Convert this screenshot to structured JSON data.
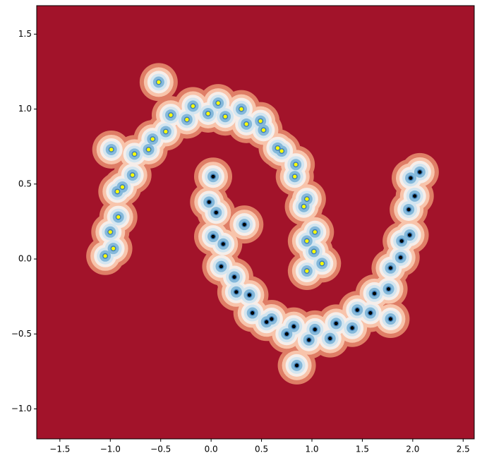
{
  "chart_data": {
    "type": "scatter",
    "background_color": "#a2132a",
    "contour_colors": [
      "#df7e66",
      "#f8c4ab",
      "#f6eeea",
      "#d3e5f0",
      "#84b8da",
      "#3b7db8"
    ],
    "xlim": [
      -1.73,
      2.61
    ],
    "ylim": [
      -1.2,
      1.69
    ],
    "xticks": [
      -1.5,
      -1.0,
      -0.5,
      0.0,
      0.5,
      1.0,
      1.5,
      2.0,
      2.5
    ],
    "yticks": [
      -1.0,
      -0.5,
      0.0,
      0.5,
      1.0,
      1.5
    ],
    "series": [
      {
        "color": "#ffff00",
        "x": [
          1.02,
          0.95,
          1.03,
          0.92,
          0.95,
          0.83,
          0.84,
          0.7,
          0.66,
          0.52,
          0.49,
          0.35,
          0.3,
          0.14,
          0.07,
          -0.03,
          -0.18,
          -0.24,
          -0.4,
          -0.45,
          -0.58,
          -0.62,
          -0.76,
          -0.78,
          -0.88,
          -0.93,
          -0.92,
          -1.0,
          -0.97,
          -1.05,
          -0.52,
          -0.99,
          1.1,
          0.95
        ],
        "y": [
          0.05,
          0.12,
          0.18,
          0.35,
          0.4,
          0.55,
          0.63,
          0.72,
          0.74,
          0.86,
          0.92,
          0.9,
          1.0,
          0.95,
          1.04,
          0.97,
          1.02,
          0.93,
          0.96,
          0.85,
          0.8,
          0.73,
          0.7,
          0.56,
          0.48,
          0.45,
          0.28,
          0.18,
          0.07,
          0.02,
          1.18,
          0.73,
          -0.03,
          -0.08
        ]
      },
      {
        "color": "#000000",
        "x": [
          0.02,
          -0.02,
          0.05,
          0.02,
          0.12,
          0.1,
          0.23,
          0.25,
          0.38,
          0.41,
          0.55,
          0.6,
          0.75,
          0.82,
          0.97,
          1.03,
          1.18,
          1.24,
          1.4,
          1.45,
          1.58,
          1.62,
          1.76,
          1.78,
          1.88,
          1.89,
          1.97,
          1.96,
          2.02,
          1.98,
          2.07,
          0.33,
          0.85,
          1.78
        ],
        "y": [
          0.55,
          0.38,
          0.31,
          0.15,
          0.1,
          -0.05,
          -0.12,
          -0.22,
          -0.24,
          -0.36,
          -0.42,
          -0.4,
          -0.5,
          -0.45,
          -0.54,
          -0.47,
          -0.53,
          -0.43,
          -0.46,
          -0.34,
          -0.36,
          -0.23,
          -0.2,
          -0.06,
          0.01,
          0.12,
          0.16,
          0.33,
          0.42,
          0.54,
          0.58,
          0.23,
          -0.71,
          -0.4
        ]
      }
    ]
  }
}
